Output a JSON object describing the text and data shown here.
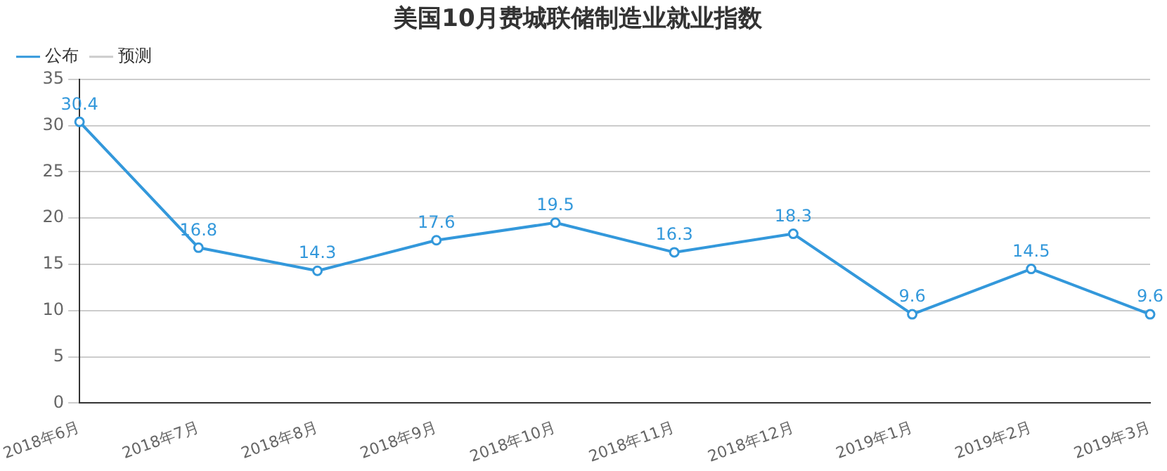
{
  "chart_data": {
    "type": "line",
    "title": "美国10月费城联储制造业就业指数",
    "categories": [
      "2018年6月",
      "2018年7月",
      "2018年8月",
      "2018年9月",
      "2018年10月",
      "2018年11月",
      "2018年12月",
      "2019年1月",
      "2019年2月",
      "2019年3月"
    ],
    "series": [
      {
        "name": "公布",
        "color": "#3398db",
        "values": [
          30.4,
          16.8,
          14.3,
          17.6,
          19.5,
          16.3,
          18.3,
          9.6,
          14.5,
          9.6
        ]
      },
      {
        "name": "预测",
        "color": "#cccccc",
        "values": [
          null,
          null,
          null,
          null,
          null,
          null,
          null,
          null,
          null,
          null
        ]
      }
    ],
    "ylim": [
      0,
      35
    ],
    "yticks": [
      0,
      5,
      10,
      15,
      20,
      25,
      30,
      35
    ],
    "grid": "y",
    "legend": "top left",
    "marker": "circle",
    "line_style": "solid",
    "data_labels": true
  }
}
